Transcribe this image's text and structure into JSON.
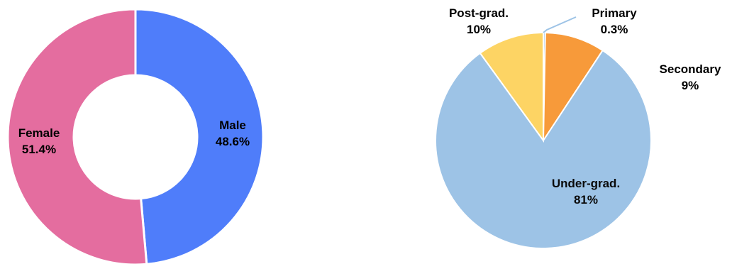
{
  "chart_data": [
    {
      "type": "pie",
      "variant": "donut",
      "title": "",
      "slices": [
        {
          "name": "Male",
          "value": 48.6,
          "label": "48.6%",
          "color": "#4f7dfa"
        },
        {
          "name": "Female",
          "value": 51.4,
          "label": "51.4%",
          "color": "#e46d9f"
        }
      ]
    },
    {
      "type": "pie",
      "title": "",
      "slices": [
        {
          "name": "Primary",
          "value": 0.3,
          "label": "0.3%",
          "color": "#9dc3e6"
        },
        {
          "name": "Secondary",
          "value": 9,
          "label": "9%",
          "color": "#f79a3a"
        },
        {
          "name": "Under-grad.",
          "value": 81,
          "label": "81%",
          "color": "#9dc3e6"
        },
        {
          "name": "Post-grad.",
          "value": 10,
          "label": "10%",
          "color": "#fdd464"
        }
      ]
    }
  ]
}
